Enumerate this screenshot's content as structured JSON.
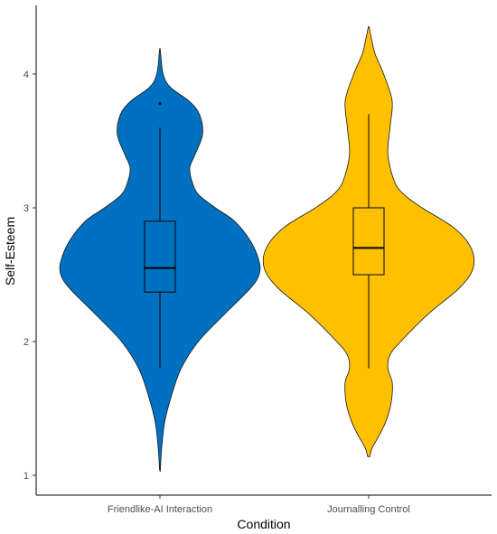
{
  "chart_data": {
    "type": "violin",
    "xlabel": "Condition",
    "ylabel": "Self-Esteem",
    "ylim": [
      0.9,
      4.5
    ],
    "yticks": [
      1,
      2,
      3,
      4
    ],
    "grid": false,
    "categories": [
      "Friendlike-AI Interaction",
      "Journalling Control"
    ],
    "series": [
      {
        "category": "Friendlike-AI Interaction",
        "color": "#0070C0",
        "min": 1.04,
        "max": 4.18,
        "density_profile": [
          [
            1.04,
            0.004
          ],
          [
            1.2,
            0.016
          ],
          [
            1.4,
            0.045
          ],
          [
            1.6,
            0.11
          ],
          [
            1.8,
            0.2
          ],
          [
            2.0,
            0.36
          ],
          [
            2.2,
            0.6
          ],
          [
            2.4,
            0.85
          ],
          [
            2.5,
            0.93
          ],
          [
            2.6,
            0.93
          ],
          [
            2.75,
            0.85
          ],
          [
            2.9,
            0.7
          ],
          [
            3.0,
            0.52
          ],
          [
            3.1,
            0.36
          ],
          [
            3.2,
            0.3
          ],
          [
            3.3,
            0.28
          ],
          [
            3.4,
            0.33
          ],
          [
            3.55,
            0.4
          ],
          [
            3.7,
            0.37
          ],
          [
            3.8,
            0.27
          ],
          [
            3.9,
            0.1
          ],
          [
            4.0,
            0.03
          ],
          [
            4.18,
            0.004
          ]
        ],
        "box": {
          "whisker_low": 1.8,
          "q1": 2.37,
          "median": 2.55,
          "q3": 2.9,
          "whisker_high": 3.6
        },
        "outliers": [
          3.78
        ]
      },
      {
        "category": "Journalling Control",
        "color": "#FFC000",
        "min": 1.14,
        "max": 4.35,
        "density_profile": [
          [
            1.14,
            0.01
          ],
          [
            1.2,
            0.03
          ],
          [
            1.3,
            0.1
          ],
          [
            1.4,
            0.16
          ],
          [
            1.5,
            0.2
          ],
          [
            1.6,
            0.22
          ],
          [
            1.7,
            0.22
          ],
          [
            1.8,
            0.18
          ],
          [
            1.9,
            0.2
          ],
          [
            2.0,
            0.3
          ],
          [
            2.2,
            0.55
          ],
          [
            2.4,
            0.85
          ],
          [
            2.55,
            0.98
          ],
          [
            2.7,
            0.96
          ],
          [
            2.85,
            0.8
          ],
          [
            3.0,
            0.5
          ],
          [
            3.1,
            0.33
          ],
          [
            3.2,
            0.24
          ],
          [
            3.4,
            0.18
          ],
          [
            3.6,
            0.2
          ],
          [
            3.8,
            0.22
          ],
          [
            4.0,
            0.14
          ],
          [
            4.15,
            0.06
          ],
          [
            4.25,
            0.03
          ],
          [
            4.35,
            0.004
          ]
        ],
        "box": {
          "whisker_low": 1.8,
          "q1": 2.5,
          "median": 2.7,
          "q3": 3.0,
          "whisker_high": 3.7
        },
        "outliers": []
      }
    ]
  }
}
